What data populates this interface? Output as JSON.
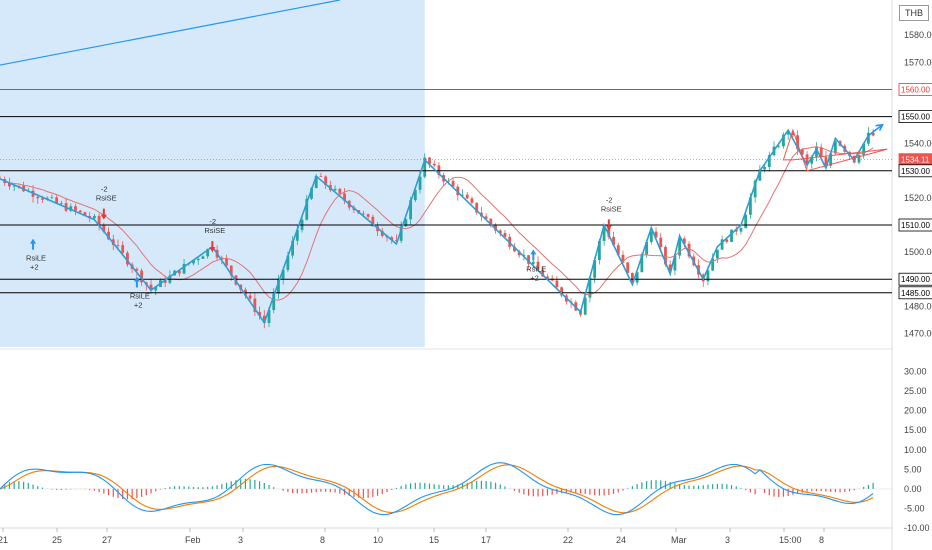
{
  "currency": "THB",
  "chart_data": [
    {
      "type": "candlestick",
      "title": "",
      "currency": "THB",
      "ylim": [
        1465,
        1593
      ],
      "y_ticks": [
        1470,
        1480,
        1490,
        1500,
        1510,
        1520,
        1530,
        1540,
        1550,
        1560,
        1570,
        1580
      ],
      "x_ticks": [
        "21",
        "25",
        "27",
        "Feb",
        "3",
        "8",
        "10",
        "15",
        "17",
        "22",
        "24",
        "Mar",
        "3",
        "15:00",
        "8"
      ],
      "price_labels": [
        {
          "value": 1560.0,
          "text": "1560.00",
          "color": "#e53935",
          "style": "line"
        },
        {
          "value": 1550.0,
          "text": "1550.00",
          "color": "#000000",
          "style": "line"
        },
        {
          "value": 1534.11,
          "text": "1534.11",
          "color": "#ef5350",
          "style": "current"
        },
        {
          "value": 1530.0,
          "text": "1530.00",
          "color": "#000000",
          "style": "line"
        },
        {
          "value": 1510.0,
          "text": "1510.00",
          "color": "#000000",
          "style": "line"
        },
        {
          "value": 1490.0,
          "text": "1490.00",
          "color": "#000000",
          "style": "line"
        },
        {
          "value": 1485.0,
          "text": "1485.00",
          "color": "#000000",
          "style": "line"
        }
      ],
      "annotations": [
        {
          "label": "RsiLE",
          "count": "+2",
          "x_index": 7,
          "price": 1505,
          "direction": "up"
        },
        {
          "label": "RsiSE",
          "count": "-2",
          "x_index": 22,
          "price": 1512,
          "direction": "down"
        },
        {
          "label": "RsiLE",
          "count": "+2",
          "x_index": 29,
          "price": 1491,
          "direction": "up"
        },
        {
          "label": "RsiSE",
          "count": "-2",
          "x_index": 45,
          "price": 1500,
          "direction": "down"
        },
        {
          "label": "RsiLE",
          "count": "+2",
          "x_index": 113,
          "price": 1501,
          "direction": "up"
        },
        {
          "label": "RsiSE",
          "count": "-2",
          "x_index": 129,
          "price": 1508,
          "direction": "down"
        }
      ],
      "zigzag": [
        [
          0,
          1527
        ],
        [
          20,
          1512
        ],
        [
          32,
          1486
        ],
        [
          45,
          1502
        ],
        [
          56,
          1474
        ],
        [
          67,
          1528
        ],
        [
          84,
          1503
        ],
        [
          90,
          1534
        ],
        [
          123,
          1478
        ],
        [
          128,
          1510
        ],
        [
          134,
          1488
        ],
        [
          138,
          1509
        ],
        [
          142,
          1492
        ],
        [
          144,
          1506
        ],
        [
          149,
          1490
        ],
        [
          152,
          1502
        ],
        [
          157,
          1510
        ],
        [
          161,
          1530
        ],
        [
          167,
          1545
        ],
        [
          171,
          1532
        ],
        [
          173,
          1538
        ],
        [
          175,
          1531
        ],
        [
          177,
          1542
        ],
        [
          181,
          1534
        ],
        [
          184,
          1543
        ]
      ],
      "trend_arrow": {
        "from": [
          184,
          1543
        ],
        "to": [
          187,
          1547
        ],
        "color": "#2196f3"
      },
      "triangle": [
        [
          166,
          1534
        ],
        [
          168,
          1545
        ],
        [
          171,
          1530
        ],
        [
          188,
          1538
        ],
        [
          168,
          1534
        ]
      ],
      "ma_color": "#e57373",
      "up_color": "#26a69a",
      "down_color": "#ef5350",
      "zigzag_color": "#2a9fd6",
      "highlight_zone": {
        "from_index": 0,
        "to_index": 90,
        "color": "#d6e9fb"
      }
    },
    {
      "type": "line+bar",
      "title": "",
      "ylim": [
        -10,
        35
      ],
      "y_ticks": [
        -10,
        -5,
        0,
        5,
        10,
        15,
        20,
        25,
        30
      ],
      "y_tick_labels": [
        "-10.00",
        "-5.00",
        "0.00",
        "5.00",
        "10.00",
        "15.00",
        "20.00",
        "25.00",
        "30.00"
      ],
      "series_colors": {
        "fast": "#2196f3",
        "slow": "#f57c00",
        "hist_up": "#26a69a",
        "hist_down": "#ef5350"
      }
    }
  ]
}
